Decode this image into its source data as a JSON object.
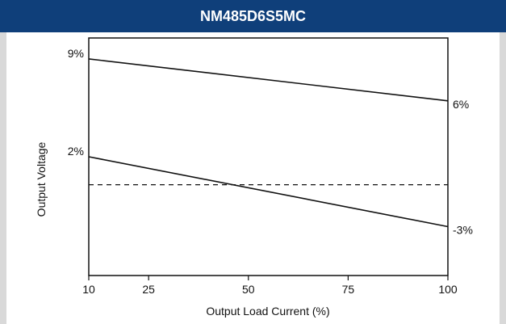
{
  "header": {
    "title": "NM485D6S5MC"
  },
  "colors": {
    "header_bg": "#0f3f7a",
    "line": "#111111"
  },
  "chart_data": {
    "type": "line",
    "title": "NM485D6S5MC",
    "xlabel": "Output Load Current (%)",
    "ylabel": "Output Voltage",
    "xticks": [
      10,
      25,
      50,
      75,
      100
    ],
    "xlim": [
      10,
      100
    ],
    "ylim": [
      -6.5,
      10.5
    ],
    "grid": false,
    "series": [
      {
        "style": "solid",
        "x": [
          10,
          100
        ],
        "y": [
          9,
          6
        ],
        "labels": {
          "start": "9%",
          "end": "6%"
        }
      },
      {
        "style": "solid",
        "x": [
          10,
          100
        ],
        "y": [
          2,
          -3
        ],
        "labels": {
          "start": "2%",
          "end": "-3%"
        }
      },
      {
        "style": "dashed",
        "x": [
          10,
          100
        ],
        "y": [
          0,
          0
        ]
      }
    ]
  }
}
